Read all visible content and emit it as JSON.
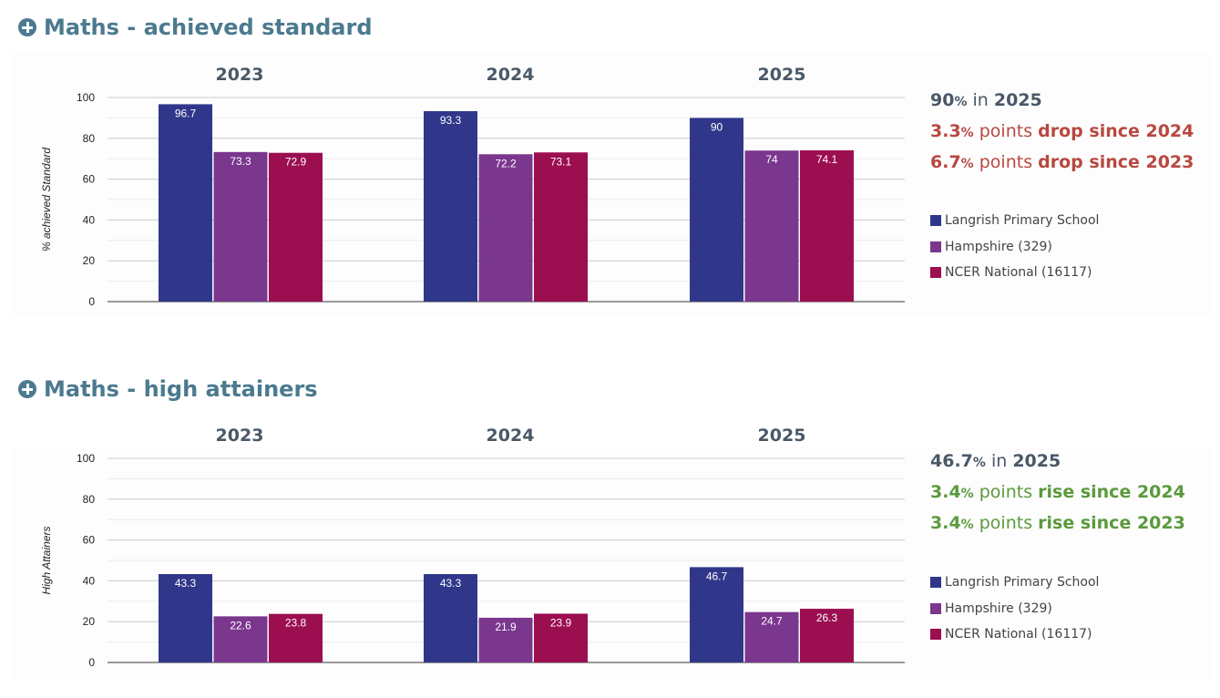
{
  "sections": [
    {
      "title": "Maths - achieved standard",
      "summary": {
        "main": {
          "value": "90",
          "pct": "%",
          "mid": " in ",
          "year": "2025"
        },
        "line1": {
          "value": "3.3",
          "pct": "%",
          "mid": " points ",
          "tail": "drop since 2024"
        },
        "line2": {
          "value": "6.7",
          "pct": "%",
          "mid": " points ",
          "tail": "drop since 2023"
        }
      },
      "legend": [
        "Langrish Primary School",
        "Hampshire (329)",
        "NCER National (16117)"
      ]
    },
    {
      "title": "Maths - high attainers",
      "summary": {
        "main": {
          "value": "46.7",
          "pct": "%",
          "mid": " in ",
          "year": "2025"
        },
        "line1": {
          "value": "3.4",
          "pct": "%",
          "mid": " points ",
          "tail": "rise since 2024"
        },
        "line2": {
          "value": "3.4",
          "pct": "%",
          "mid": " points ",
          "tail": "rise since 2023"
        }
      },
      "legend": [
        "Langrish Primary School",
        "Hampshire (329)",
        "NCER National (16117)"
      ]
    }
  ],
  "colors": {
    "school": "#30378a",
    "hampshire": "#7a378d",
    "national": "#9b0e50",
    "title": "#4b7a8f"
  },
  "chart_data": [
    {
      "type": "bar",
      "categories": [
        "2023",
        "2024",
        "2025"
      ],
      "ylabel": "% achieved Standard",
      "ylim": [
        0,
        100
      ],
      "yticks": [
        0,
        20,
        40,
        60,
        80,
        100
      ],
      "series": [
        {
          "name": "Langrish Primary School",
          "values": [
            96.7,
            93.3,
            90
          ],
          "labels": [
            "96.7",
            "93.3",
            "90"
          ]
        },
        {
          "name": "Hampshire (329)",
          "values": [
            73.3,
            72.2,
            74
          ],
          "labels": [
            "73.3",
            "72.2",
            "74"
          ]
        },
        {
          "name": "NCER National (16117)",
          "values": [
            72.9,
            73.1,
            74.1
          ],
          "labels": [
            "72.9",
            "73.1",
            "74.1"
          ]
        }
      ]
    },
    {
      "type": "bar",
      "categories": [
        "2023",
        "2024",
        "2025"
      ],
      "ylabel": "High Attainers",
      "ylim": [
        0,
        100
      ],
      "yticks": [
        0,
        20,
        40,
        60,
        80,
        100
      ],
      "series": [
        {
          "name": "Langrish Primary School",
          "values": [
            43.3,
            43.3,
            46.7
          ],
          "labels": [
            "43.3",
            "43.3",
            "46.7"
          ]
        },
        {
          "name": "Hampshire (329)",
          "values": [
            22.6,
            21.9,
            24.7
          ],
          "labels": [
            "22.6",
            "21.9",
            "24.7"
          ]
        },
        {
          "name": "NCER National (16117)",
          "values": [
            23.8,
            23.9,
            26.3
          ],
          "labels": [
            "23.8",
            "23.9",
            "26.3"
          ]
        }
      ]
    }
  ]
}
